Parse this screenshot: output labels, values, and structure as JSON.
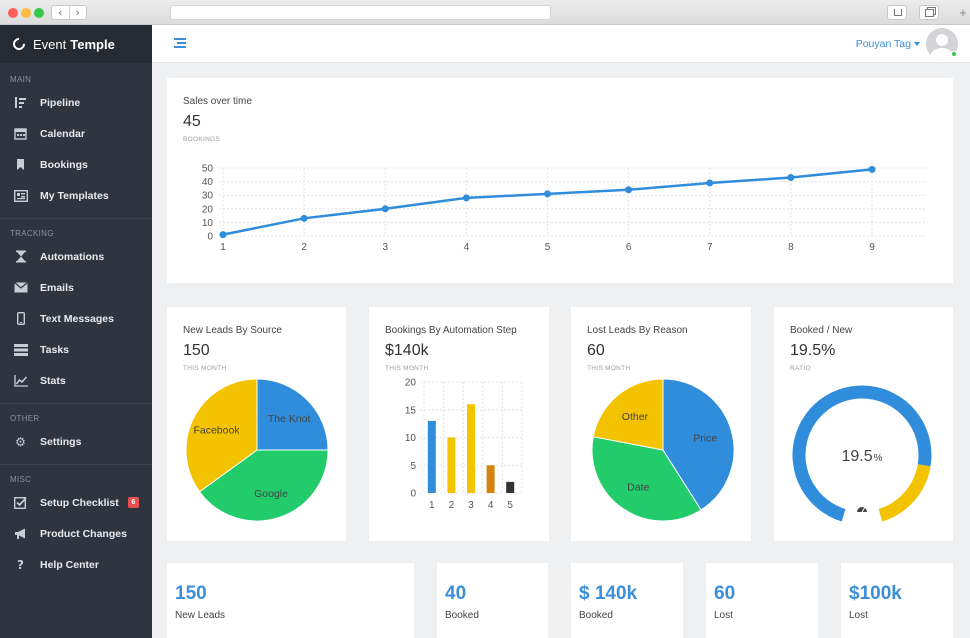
{
  "brand": {
    "name_regular": "Event",
    "name_bold": "Temple"
  },
  "sidebar": {
    "sections": [
      {
        "title": "MAIN",
        "items": [
          {
            "label": "Pipeline",
            "icon": "pipeline-icon"
          },
          {
            "label": "Calendar",
            "icon": "calendar-icon"
          },
          {
            "label": "Bookings",
            "icon": "bookmark-icon"
          },
          {
            "label": "My Templates",
            "icon": "templates-icon"
          }
        ]
      },
      {
        "title": "TRACKING",
        "items": [
          {
            "label": "Automations",
            "icon": "hourglass-icon"
          },
          {
            "label": "Emails",
            "icon": "envelope-icon"
          },
          {
            "label": "Text Messages",
            "icon": "mobile-icon"
          },
          {
            "label": "Tasks",
            "icon": "tasks-icon"
          },
          {
            "label": "Stats",
            "icon": "line-chart-icon"
          }
        ]
      },
      {
        "title": "OTHER",
        "items": [
          {
            "label": "Settings",
            "icon": "gears-icon"
          }
        ]
      },
      {
        "title": "MISC",
        "items": [
          {
            "label": "Setup Checklist",
            "icon": "checkbox-icon",
            "badge": "6"
          },
          {
            "label": "Product Changes",
            "icon": "megaphone-icon"
          },
          {
            "label": "Help Center",
            "icon": "question-icon"
          }
        ]
      }
    ]
  },
  "topbar": {
    "user_name": "Pouyan Tag"
  },
  "sales_card": {
    "title": "Sales over time",
    "value": "45",
    "sub": "BOOKINGS",
    "chart_data": {
      "type": "line",
      "x": [
        1,
        2,
        3,
        4,
        5,
        6,
        7,
        8,
        9
      ],
      "series": [
        {
          "values": [
            1,
            13,
            20,
            28,
            31,
            34,
            39,
            43,
            49
          ]
        }
      ],
      "ylim": [
        0,
        50
      ],
      "yticks": [
        0,
        10,
        20,
        30,
        40,
        50
      ],
      "color": "#2f8ddb",
      "grid": true
    }
  },
  "leads_card": {
    "title": "New Leads By Source",
    "value": "150",
    "sub": "THIS MONTH",
    "chart_data": {
      "type": "pie",
      "labels": [
        "The Knot",
        "Google",
        "Facebook"
      ],
      "values": [
        25,
        40,
        35
      ],
      "colors": [
        "#2f8ddb",
        "#22cc6a",
        "#f4c300"
      ]
    }
  },
  "automation_card": {
    "title": "Bookings By Automation Step",
    "value": "$140k",
    "sub": "THIS MONTH",
    "chart_data": {
      "type": "bar",
      "categories": [
        "1",
        "2",
        "3",
        "4",
        "5"
      ],
      "values": [
        13,
        10,
        16,
        5,
        2
      ],
      "colors": [
        "#2f8ddb",
        "#f4c300",
        "#f4c300",
        "#d4830e",
        "#333333"
      ],
      "ylim": [
        0,
        20
      ],
      "yticks": [
        0,
        5,
        10,
        15,
        20
      ]
    }
  },
  "lost_card": {
    "title": "Lost Leads By Reason",
    "value": "60",
    "sub": "THIS MONTH",
    "chart_data": {
      "type": "pie",
      "labels": [
        "Price",
        "Date",
        "Other"
      ],
      "values": [
        41,
        37,
        22
      ],
      "colors": [
        "#2f8ddb",
        "#22cc6a",
        "#f4c300"
      ]
    }
  },
  "ratio_card": {
    "title": "Booked / New",
    "value": "19.5%",
    "sub": "RATIO",
    "gauge": {
      "number": "19.5",
      "unit": "%",
      "fraction": 0.195,
      "track_color": "#2f8ddb",
      "fill_color": "#f4c300"
    }
  },
  "stats": [
    {
      "value": "150",
      "label": "New Leads"
    },
    {
      "value": "40",
      "label": "Booked"
    },
    {
      "value": "$ 140k",
      "label": "Booked"
    },
    {
      "value": "60",
      "label": "Lost"
    },
    {
      "value": "$100k",
      "label": "Lost"
    }
  ]
}
